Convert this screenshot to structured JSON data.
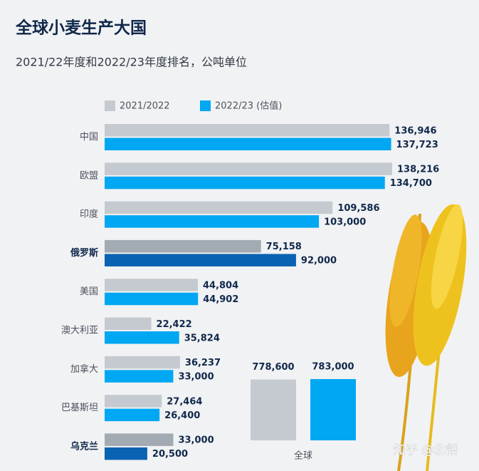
{
  "chart_data": {
    "type": "bar",
    "orientation": "horizontal",
    "title": "全球小麦生产大国",
    "subtitle": "2021/22年度和2022/23年度排名，公吨单位",
    "categories": [
      "中国",
      "欧盟",
      "印度",
      "俄罗斯",
      "美国",
      "澳大利亚",
      "加拿大",
      "巴基斯坦",
      "乌克兰"
    ],
    "highlight": [
      3,
      8
    ],
    "series": [
      {
        "name": "2021/2022",
        "color": "#c5cad0",
        "highlight_color": "#a2aab2",
        "values": [
          136946,
          138216,
          109586,
          75158,
          44804,
          22422,
          36237,
          27464,
          33000
        ],
        "value_labels": [
          "136,946",
          "138,216",
          "109,586",
          "75,158",
          "44,804",
          "22,422",
          "36,237",
          "27,464",
          "33,000"
        ]
      },
      {
        "name": "2022/23 (估值)",
        "color": "#00a7f2",
        "highlight_color": "#0a62b2",
        "values": [
          137723,
          134700,
          103000,
          92000,
          44902,
          35824,
          33000,
          26400,
          20500
        ],
        "value_labels": [
          "137,723",
          "134,700",
          "103,000",
          "92,000",
          "44,902",
          "35,824",
          "33,000",
          "26,400",
          "20,500"
        ]
      }
    ],
    "totals": {
      "label": "全球",
      "values": [
        778600,
        783000
      ],
      "value_labels": [
        "778,600",
        "783,000"
      ]
    },
    "watermark": "知乎 @北悟"
  }
}
